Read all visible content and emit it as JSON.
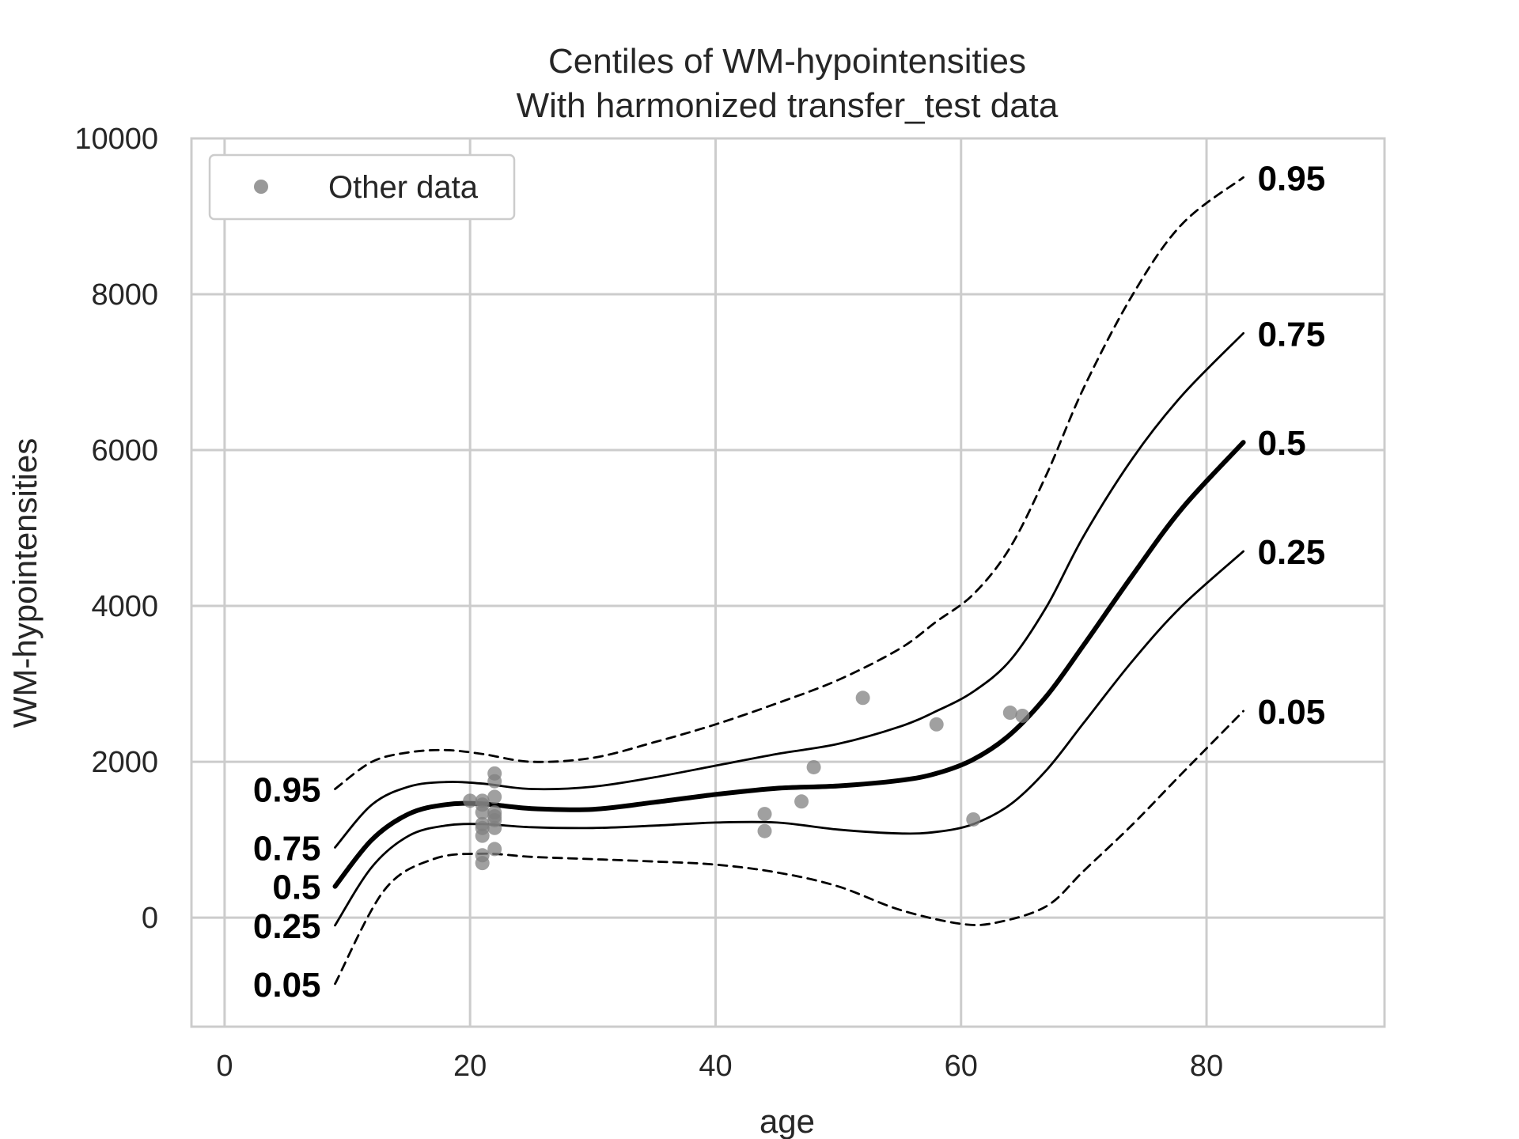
{
  "chart_data": {
    "type": "line",
    "title": "Centiles of WM-hypointensities",
    "subtitle": "With harmonized transfer_test data",
    "xlabel": "age",
    "ylabel": "WM-hypointensities",
    "xlim": [
      -2.7,
      94.5
    ],
    "ylim": [
      -1400,
      10000
    ],
    "xticks": [
      0,
      20,
      40,
      60,
      80
    ],
    "yticks": [
      0,
      2000,
      4000,
      6000,
      8000,
      10000
    ],
    "grid": true,
    "legend": {
      "placement": "top-left",
      "entries": [
        "Other data"
      ]
    },
    "colors": {
      "curve": "#000000",
      "points": "#808080",
      "grid": "#cccccc",
      "frame": "#cccccc"
    },
    "series": [
      {
        "name": "0.05",
        "style": "dashed",
        "x": [
          9,
          13,
          17,
          21,
          25,
          30,
          35,
          40,
          45,
          50,
          55,
          60,
          63,
          67,
          70,
          74,
          78,
          83
        ],
        "y": [
          -850,
          350,
          750,
          820,
          780,
          750,
          720,
          680,
          580,
          400,
          100,
          -80,
          -60,
          150,
          600,
          1200,
          1850,
          2650
        ]
      },
      {
        "name": "0.25",
        "style": "solid",
        "x": [
          9,
          12,
          15,
          18,
          21,
          25,
          30,
          35,
          40,
          45,
          50,
          55,
          58,
          61,
          64,
          67,
          70,
          74,
          78,
          83
        ],
        "y": [
          -100,
          650,
          1050,
          1180,
          1200,
          1160,
          1150,
          1180,
          1220,
          1220,
          1130,
          1080,
          1100,
          1200,
          1450,
          1900,
          2500,
          3300,
          4000,
          4700
        ]
      },
      {
        "name": "0.5",
        "style": "bold",
        "x": [
          9,
          12,
          15,
          18,
          21,
          25,
          30,
          35,
          40,
          45,
          50,
          55,
          58,
          61,
          64,
          67,
          70,
          74,
          78,
          83
        ],
        "y": [
          400,
          1000,
          1330,
          1450,
          1460,
          1400,
          1390,
          1480,
          1580,
          1660,
          1690,
          1760,
          1850,
          2030,
          2350,
          2850,
          3500,
          4400,
          5250,
          6100
        ]
      },
      {
        "name": "0.75",
        "style": "solid",
        "x": [
          9,
          12,
          15,
          18,
          21,
          25,
          30,
          35,
          40,
          45,
          50,
          55,
          58,
          61,
          64,
          67,
          70,
          74,
          78,
          83
        ],
        "y": [
          900,
          1450,
          1680,
          1740,
          1720,
          1650,
          1680,
          1800,
          1950,
          2100,
          2230,
          2450,
          2650,
          2900,
          3300,
          4000,
          4900,
          5900,
          6700,
          7500
        ]
      },
      {
        "name": "0.95",
        "style": "dashed",
        "x": [
          9,
          12,
          15,
          18,
          21,
          25,
          30,
          35,
          40,
          45,
          50,
          55,
          58,
          61,
          64,
          67,
          70,
          74,
          78,
          83
        ],
        "y": [
          1650,
          2000,
          2120,
          2150,
          2100,
          2000,
          2050,
          2250,
          2480,
          2750,
          3050,
          3450,
          3800,
          4150,
          4750,
          5700,
          6800,
          8000,
          8900,
          9500
        ]
      }
    ],
    "points": [
      {
        "x": 20,
        "y": 1500
      },
      {
        "x": 21,
        "y": 1500
      },
      {
        "x": 21,
        "y": 1450
      },
      {
        "x": 21,
        "y": 1350
      },
      {
        "x": 21,
        "y": 1200
      },
      {
        "x": 21,
        "y": 1150
      },
      {
        "x": 21,
        "y": 1050
      },
      {
        "x": 21,
        "y": 800
      },
      {
        "x": 21,
        "y": 700
      },
      {
        "x": 22,
        "y": 1850
      },
      {
        "x": 22,
        "y": 1750
      },
      {
        "x": 22,
        "y": 1550
      },
      {
        "x": 22,
        "y": 1350
      },
      {
        "x": 22,
        "y": 1300
      },
      {
        "x": 22,
        "y": 1250
      },
      {
        "x": 22,
        "y": 1150
      },
      {
        "x": 22,
        "y": 880
      },
      {
        "x": 44,
        "y": 1330
      },
      {
        "x": 44,
        "y": 1110
      },
      {
        "x": 47,
        "y": 1490
      },
      {
        "x": 48,
        "y": 1930
      },
      {
        "x": 52,
        "y": 2820
      },
      {
        "x": 58,
        "y": 2480
      },
      {
        "x": 61,
        "y": 1260
      },
      {
        "x": 64,
        "y": 2630
      },
      {
        "x": 65,
        "y": 2590
      }
    ]
  }
}
